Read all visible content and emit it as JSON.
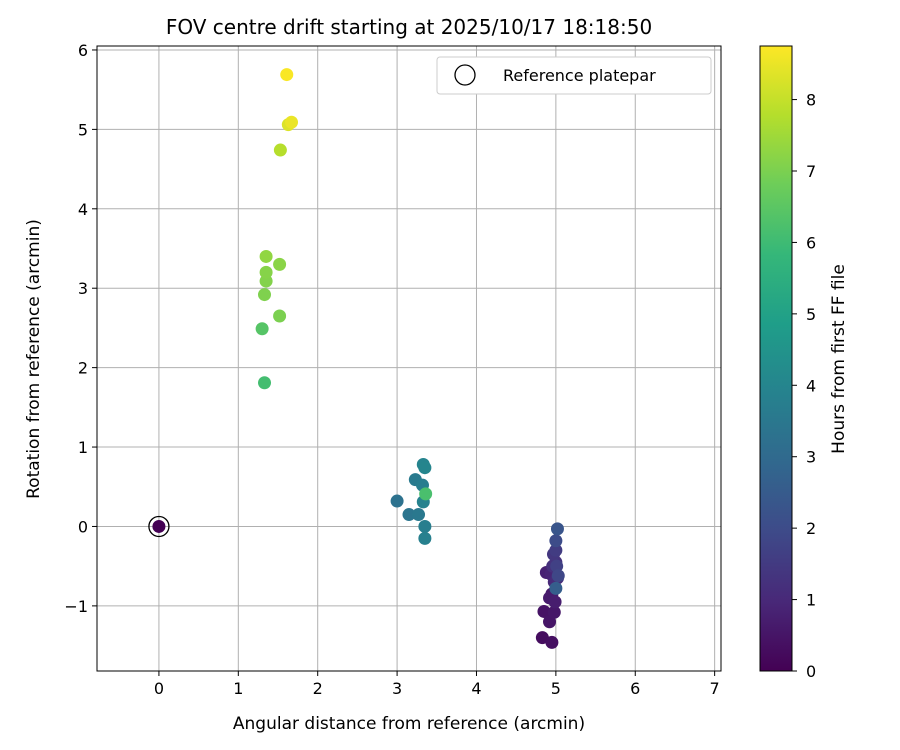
{
  "chart_data": {
    "type": "scatter",
    "title": "FOV centre drift starting at 2025/10/17 18:18:50",
    "xlabel": "Angular distance from reference (arcmin)",
    "ylabel": "Rotation from reference (arcmin)",
    "xlim": [
      -0.78,
      7.08
    ],
    "ylim": [
      -1.82,
      6.05
    ],
    "xticks": [
      0,
      1,
      2,
      3,
      4,
      5,
      6,
      7
    ],
    "xtick_labels": [
      "0",
      "1",
      "2",
      "3",
      "4",
      "5",
      "6",
      "7"
    ],
    "yticks": [
      -1,
      0,
      1,
      2,
      3,
      4,
      5,
      6
    ],
    "ytick_labels": [
      "−1",
      "0",
      "1",
      "2",
      "3",
      "4",
      "5",
      "6"
    ],
    "grid": true,
    "legend": {
      "placement": "top-right",
      "label": "Reference platepar"
    },
    "colorbar": {
      "label": "Hours from first FF file",
      "min": 0,
      "max": 8.75,
      "ticks": [
        0,
        1,
        2,
        3,
        4,
        5,
        6,
        7,
        8
      ],
      "tick_labels": [
        "0",
        "1",
        "2",
        "3",
        "4",
        "5",
        "6",
        "7",
        "8"
      ],
      "colormap": "viridis"
    },
    "reference_point": {
      "x": 0,
      "y": 0
    },
    "points": [
      {
        "x": 0.0,
        "y": 0.0,
        "c": 0.0
      },
      {
        "x": 4.83,
        "y": -1.4,
        "c": 0.3
      },
      {
        "x": 4.95,
        "y": -1.46,
        "c": 0.35
      },
      {
        "x": 4.85,
        "y": -1.07,
        "c": 0.45
      },
      {
        "x": 4.92,
        "y": -1.2,
        "c": 0.5
      },
      {
        "x": 4.98,
        "y": -1.08,
        "c": 0.55
      },
      {
        "x": 4.95,
        "y": -0.85,
        "c": 0.6
      },
      {
        "x": 4.92,
        "y": -0.9,
        "c": 0.65
      },
      {
        "x": 4.99,
        "y": -0.95,
        "c": 0.7
      },
      {
        "x": 4.88,
        "y": -0.58,
        "c": 0.8
      },
      {
        "x": 4.94,
        "y": -0.6,
        "c": 0.9
      },
      {
        "x": 4.98,
        "y": -0.7,
        "c": 1.0
      },
      {
        "x": 5.02,
        "y": -0.65,
        "c": 1.1
      },
      {
        "x": 4.96,
        "y": -0.5,
        "c": 1.2
      },
      {
        "x": 5.0,
        "y": -0.45,
        "c": 1.3
      },
      {
        "x": 4.97,
        "y": -0.35,
        "c": 1.4
      },
      {
        "x": 5.0,
        "y": -0.3,
        "c": 1.55
      },
      {
        "x": 5.01,
        "y": -0.5,
        "c": 1.7
      },
      {
        "x": 5.03,
        "y": -0.62,
        "c": 1.85
      },
      {
        "x": 5.0,
        "y": -0.18,
        "c": 2.0
      },
      {
        "x": 5.02,
        "y": -0.03,
        "c": 2.3
      },
      {
        "x": 5.0,
        "y": -0.78,
        "c": 2.6
      },
      {
        "x": 3.0,
        "y": 0.32,
        "c": 3.3
      },
      {
        "x": 3.15,
        "y": 0.15,
        "c": 3.4
      },
      {
        "x": 3.27,
        "y": 0.15,
        "c": 3.5
      },
      {
        "x": 3.23,
        "y": 0.59,
        "c": 3.6
      },
      {
        "x": 3.32,
        "y": 0.52,
        "c": 3.7
      },
      {
        "x": 3.35,
        "y": 0.0,
        "c": 3.75
      },
      {
        "x": 3.35,
        "y": -0.15,
        "c": 3.8
      },
      {
        "x": 3.33,
        "y": 0.31,
        "c": 3.9
      },
      {
        "x": 3.33,
        "y": 0.78,
        "c": 3.95
      },
      {
        "x": 3.35,
        "y": 0.74,
        "c": 4.0
      },
      {
        "x": 3.36,
        "y": 0.41,
        "c": 6.2
      },
      {
        "x": 1.33,
        "y": 1.81,
        "c": 6.1
      },
      {
        "x": 1.3,
        "y": 2.49,
        "c": 6.4
      },
      {
        "x": 1.52,
        "y": 2.65,
        "c": 7.0
      },
      {
        "x": 1.33,
        "y": 2.92,
        "c": 7.05
      },
      {
        "x": 1.35,
        "y": 3.09,
        "c": 7.1
      },
      {
        "x": 1.35,
        "y": 3.2,
        "c": 7.15
      },
      {
        "x": 1.52,
        "y": 3.3,
        "c": 7.2
      },
      {
        "x": 1.35,
        "y": 3.4,
        "c": 7.3
      },
      {
        "x": 1.53,
        "y": 4.74,
        "c": 7.8
      },
      {
        "x": 1.63,
        "y": 5.06,
        "c": 8.3
      },
      {
        "x": 1.67,
        "y": 5.09,
        "c": 8.5
      },
      {
        "x": 1.61,
        "y": 5.69,
        "c": 8.7
      }
    ]
  }
}
